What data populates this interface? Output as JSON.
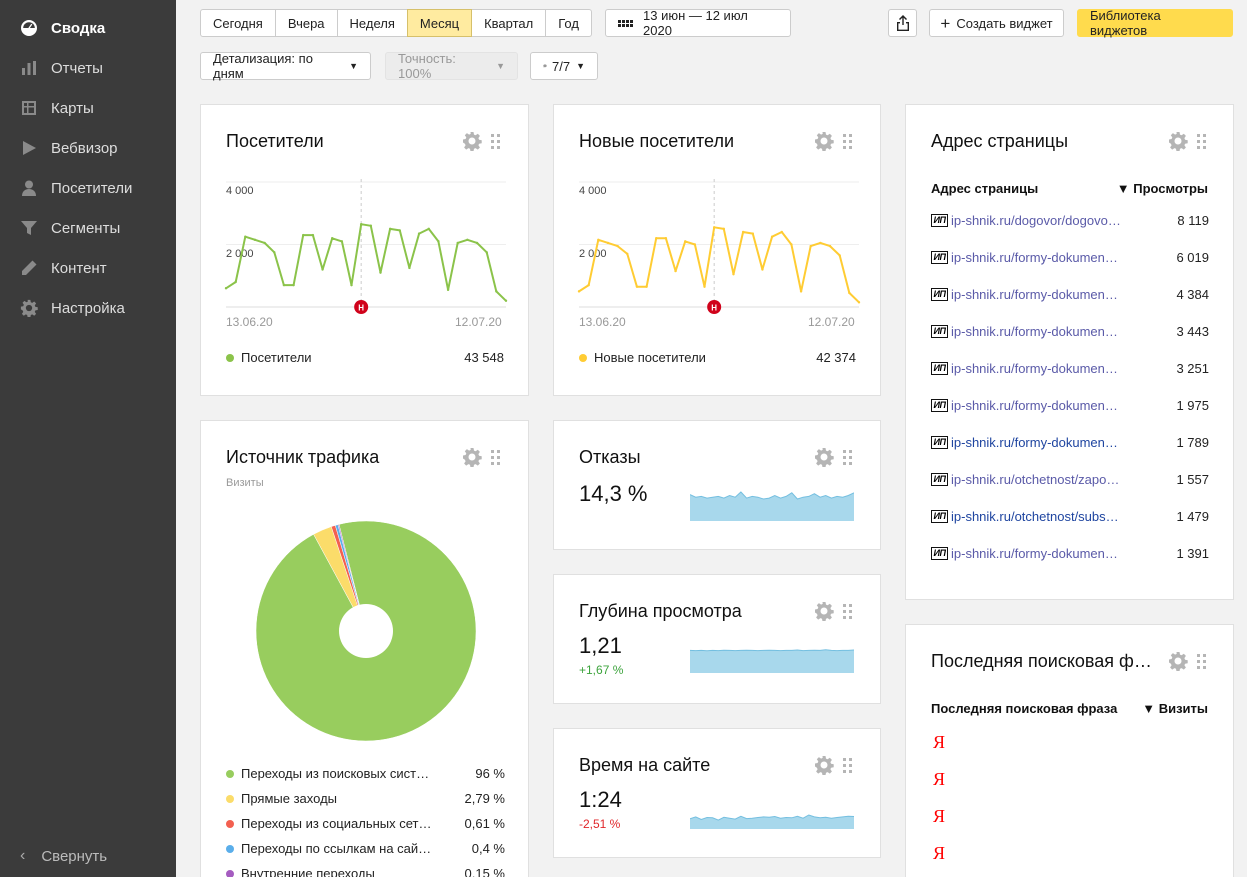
{
  "sidebar": {
    "items": [
      {
        "label": "Сводка",
        "icon": "dashboard-icon",
        "active": true
      },
      {
        "label": "Отчеты",
        "icon": "bar-chart-icon",
        "active": false
      },
      {
        "label": "Карты",
        "icon": "map-icon",
        "active": false
      },
      {
        "label": "Вебвизор",
        "icon": "play-icon",
        "active": false
      },
      {
        "label": "Посетители",
        "icon": "user-icon",
        "active": false
      },
      {
        "label": "Сегменты",
        "icon": "filter-icon",
        "active": false
      },
      {
        "label": "Контент",
        "icon": "pencil-icon",
        "active": false
      },
      {
        "label": "Настройка",
        "icon": "gear-icon",
        "active": false
      }
    ],
    "collapse_label": "Свернуть"
  },
  "toolbar": {
    "periods": [
      "Сегодня",
      "Вчера",
      "Неделя",
      "Месяц",
      "Квартал",
      "Год"
    ],
    "selected_period": "Месяц",
    "date_range": "13 июн — 12 июл 2020",
    "create_widget": "Создать виджет",
    "widget_library": "Библиотека виджетов",
    "detail": "Детализация: по дням",
    "accuracy": "Точность: 100%",
    "notes": "7/7"
  },
  "colors": {
    "accent_yellow": "#ffdb4d",
    "visitors_green": "#8bc34a",
    "new_visitors_yellow": "#ffcc33",
    "sparkline_blue": "#a8d8ec",
    "sidebar_bg": "#3b3b3b",
    "positive": "#3ca33c",
    "negative": "#e0262a"
  },
  "widgets": {
    "visitors": {
      "title": "Посетители",
      "y_ticks": [
        "4 000",
        "2 000"
      ],
      "x_start": "13.06.20",
      "x_end": "12.07.20",
      "legend": "Посетители",
      "total": "43 548",
      "chart_data": {
        "type": "line",
        "title": "Посетители",
        "x": [
          "13.06",
          "14.06",
          "15.06",
          "16.06",
          "17.06",
          "18.06",
          "19.06",
          "20.06",
          "21.06",
          "22.06",
          "23.06",
          "24.06",
          "25.06",
          "26.06",
          "27.06",
          "28.06",
          "29.06",
          "30.06",
          "01.07",
          "02.07",
          "03.07",
          "04.07",
          "05.07",
          "06.07",
          "07.07",
          "08.07",
          "09.07",
          "10.07",
          "11.07",
          "12.07"
        ],
        "series": [
          {
            "name": "Посетители",
            "values": [
              600,
              800,
              2250,
              2150,
              2050,
              1750,
              700,
              700,
              2300,
              2300,
              1200,
              2200,
              2100,
              700,
              2650,
              2600,
              1100,
              2500,
              2450,
              1250,
              2350,
              2500,
              2100,
              550,
              2050,
              2150,
              2050,
              1750,
              500,
              200
            ]
          }
        ],
        "ylim": [
          0,
          4000
        ],
        "event_marker": {
          "x": "27.06",
          "label": "Н"
        }
      }
    },
    "new_visitors": {
      "title": "Новые посетители",
      "y_ticks": [
        "4 000",
        "2 000"
      ],
      "x_start": "13.06.20",
      "x_end": "12.07.20",
      "legend": "Новые посетители",
      "total": "42 374",
      "chart_data": {
        "type": "line",
        "title": "Новые посетители",
        "x": [
          "13.06",
          "14.06",
          "15.06",
          "16.06",
          "17.06",
          "18.06",
          "19.06",
          "20.06",
          "21.06",
          "22.06",
          "23.06",
          "24.06",
          "25.06",
          "26.06",
          "27.06",
          "28.06",
          "29.06",
          "30.06",
          "01.07",
          "02.07",
          "03.07",
          "04.07",
          "05.07",
          "06.07",
          "07.07",
          "08.07",
          "09.07",
          "10.07",
          "11.07",
          "12.07"
        ],
        "series": [
          {
            "name": "Новые посетители",
            "values": [
              500,
              700,
              2150,
              2050,
              1950,
              1700,
              650,
              650,
              2200,
              2200,
              1150,
              2100,
              2000,
              650,
              2550,
              2500,
              1050,
              2400,
              2350,
              1200,
              2250,
              2400,
              2000,
              500,
              1950,
              2050,
              1950,
              1650,
              450,
              150
            ]
          }
        ],
        "ylim": [
          0,
          4000
        ],
        "event_marker": {
          "x": "27.06",
          "label": "Н"
        }
      }
    },
    "bounces": {
      "title": "Отказы",
      "value": "14,3 %",
      "change": "",
      "chart_data": {
        "type": "area",
        "values": [
          3,
          2.7,
          2.8,
          2.6,
          2.7,
          2.8,
          2.6,
          2.9,
          2.7,
          3.3,
          2.6,
          2.8,
          2.7,
          2.5,
          2.6,
          2.9,
          2.6,
          2.8,
          3.2,
          2.5,
          2.7,
          2.8,
          3.1,
          2.7,
          2.9,
          2.6,
          2.8,
          2.7,
          2.9,
          3.2
        ],
        "ylim": [
          0,
          5
        ]
      }
    },
    "depth": {
      "title": "Глубина просмотра",
      "value": "1,21",
      "change": "+1,67 %",
      "chart_data": {
        "type": "area",
        "values": [
          1.2,
          1.19,
          1.2,
          1.18,
          1.2,
          1.19,
          1.21,
          1.2,
          1.19,
          1.2,
          1.21,
          1.2,
          1.19,
          1.2,
          1.21,
          1.2,
          1.19,
          1.2,
          1.2,
          1.22,
          1.19,
          1.2,
          1.21,
          1.2,
          1.23,
          1.2,
          1.19,
          1.2,
          1.2,
          1.22
        ],
        "ylim": [
          0,
          1.7
        ]
      }
    },
    "time_on_site": {
      "title": "Время на сайте",
      "value": "1:24",
      "change": "-2,51 %",
      "chart_data": {
        "type": "area",
        "values": [
          80,
          95,
          75,
          90,
          88,
          70,
          92,
          85,
          78,
          100,
          82,
          85,
          90,
          95,
          92,
          98,
          85,
          90,
          88,
          100,
          85,
          110,
          95,
          88,
          92,
          85,
          90,
          95,
          100,
          98
        ],
        "ylim": [
          0,
          220
        ]
      }
    },
    "traffic_source": {
      "title": "Источник трафика",
      "subtitle": "Визиты",
      "chart_data": {
        "type": "pie",
        "categories": [
          "Переходы из поисковых сист…",
          "Прямые заходы",
          "Переходы из социальных сет…",
          "Переходы по ссылкам на сай…",
          "Внутренние переходы"
        ],
        "values": [
          96,
          2.79,
          0.61,
          0.4,
          0.15
        ]
      },
      "rows": [
        {
          "label": "Переходы из поисковых сист…",
          "value": "96 %",
          "color": "#98cd5e"
        },
        {
          "label": "Прямые заходы",
          "value": "2,79 %",
          "color": "#fbdc6a"
        },
        {
          "label": "Переходы из социальных сет…",
          "value": "0,61 %",
          "color": "#f36050"
        },
        {
          "label": "Переходы по ссылкам на сай…",
          "value": "0,4 %",
          "color": "#5aaeea"
        },
        {
          "label": "Внутренние переходы",
          "value": "0,15 %",
          "color": "#a55cc0"
        }
      ]
    },
    "page_address": {
      "title": "Адрес страницы",
      "col_label": "Адрес страницы",
      "col_value": "▼ Просмотры",
      "favicon_text": "ИП",
      "rows": [
        {
          "url": "ip-shnik.ru/dogovor/dogovo…",
          "value": "8 119",
          "highlight": false
        },
        {
          "url": "ip-shnik.ru/formy-dokumen…",
          "value": "6 019",
          "highlight": false
        },
        {
          "url": "ip-shnik.ru/formy-dokumen…",
          "value": "4 384",
          "highlight": false
        },
        {
          "url": "ip-shnik.ru/formy-dokumen…",
          "value": "3 443",
          "highlight": false
        },
        {
          "url": "ip-shnik.ru/formy-dokumen…",
          "value": "3 251",
          "highlight": false
        },
        {
          "url": "ip-shnik.ru/formy-dokumen…",
          "value": "1 975",
          "highlight": false
        },
        {
          "url": "ip-shnik.ru/formy-dokumen…",
          "value": "1 789",
          "highlight": true
        },
        {
          "url": "ip-shnik.ru/otchetnost/zapo…",
          "value": "1 557",
          "highlight": false
        },
        {
          "url": "ip-shnik.ru/otchetnost/subs…",
          "value": "1 479",
          "highlight": true
        },
        {
          "url": "ip-shnik.ru/formy-dokumen…",
          "value": "1 391",
          "highlight": false
        }
      ]
    },
    "last_search": {
      "title": "Последняя поисковая ф…",
      "col_label": "Последняя поисковая фраза",
      "col_value": "▼ Визиты",
      "rows": [
        "Я",
        "Я",
        "Я",
        "Я"
      ]
    }
  }
}
